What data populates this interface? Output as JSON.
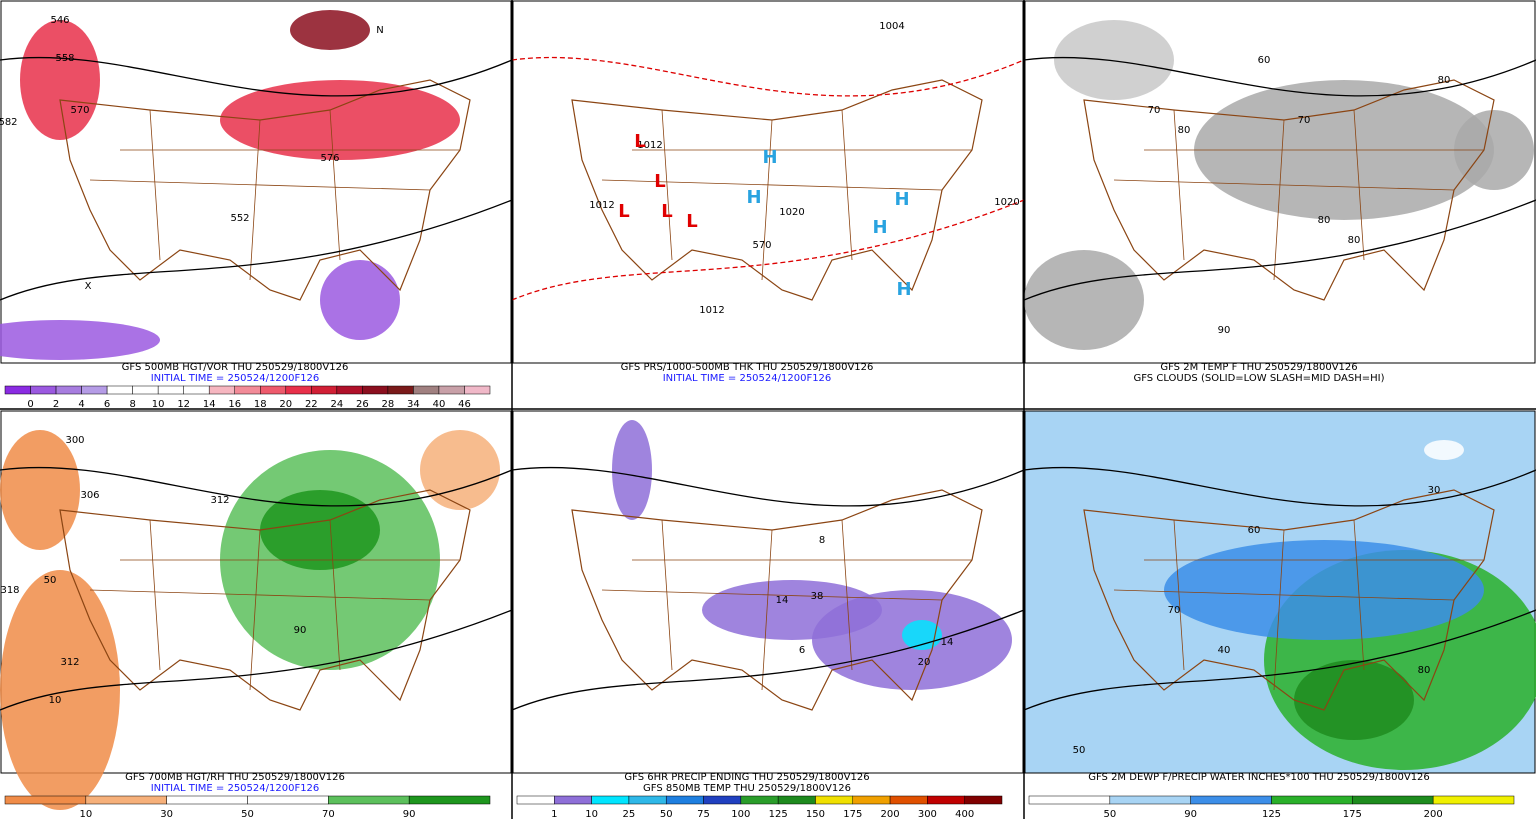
{
  "panels": [
    {
      "map_labels": [
        "546",
        "558",
        "570",
        "582",
        "552",
        "576",
        "N",
        "X"
      ],
      "caption": [
        "GFS 500MB HGT/VOR THU 250529/1800V126",
        "INITIAL TIME = 250524/1200F126"
      ],
      "colorbar": {
        "colors": [
          "#8a2be2",
          "#9b59e0",
          "#a77ddf",
          "#b59ce6",
          "#ffffff",
          "#ffffff",
          "#ffffff",
          "#ffffff",
          "#f6b6c0",
          "#f28b98",
          "#ee5a6c",
          "#e8304a",
          "#d11f35",
          "#b0102a",
          "#8b0f1f",
          "#7a1a1a",
          "#a08080",
          "#c8a0a8",
          "#f0b8c8"
        ],
        "labels": [
          0,
          2,
          4,
          6,
          8,
          10,
          12,
          14,
          16,
          18,
          20,
          22,
          24,
          26,
          28,
          34,
          40,
          46
        ]
      }
    },
    {
      "map_labels": [
        "1004",
        "1012",
        "1012",
        "1020",
        "1020",
        "1012",
        "570",
        "L",
        "L",
        "L",
        "L",
        "L",
        "H",
        "H",
        "H",
        "H",
        "H"
      ],
      "caption": [
        "GFS PRS/1000-500MB THK THU 250529/1800V126",
        "INITIAL TIME = 250524/1200F126"
      ]
    },
    {
      "map_labels": [
        "80",
        "80",
        "70",
        "60",
        "80",
        "90",
        "80",
        "70"
      ],
      "caption": [
        "GFS 2M TEMP F THU 250529/1800V126",
        "GFS CLOUDS (SOLID=LOW SLASH=MID DASH=HI)"
      ]
    },
    {
      "map_labels": [
        "300",
        "306",
        "312",
        "318",
        "10",
        "50",
        "90",
        "312"
      ],
      "caption": [
        "GFS 700MB HGT/RH THU 250529/1800V126",
        "INITIAL TIME = 250524/1200F126"
      ],
      "colorbar": {
        "colors": [
          "#f08c48",
          "#f6b07a",
          "#ffffff",
          "#ffffff",
          "#5cc05c",
          "#1e961e"
        ],
        "labels": [
          10,
          30,
          50,
          70,
          90
        ]
      }
    },
    {
      "map_labels": [
        "38",
        "20",
        "14",
        "6",
        "8",
        "14"
      ],
      "caption": [
        "GFS 6HR PRECIP ENDING THU 250529/1800V126",
        "GFS 850MB TEMP THU 250529/1800V126"
      ],
      "colorbar": {
        "colors": [
          "#ffffff",
          "#8e6fd8",
          "#00e5ff",
          "#2fb8e8",
          "#1e7fe0",
          "#2040c0",
          "#2a9d2a",
          "#1e8a1e",
          "#f0e000",
          "#f0a000",
          "#e05000",
          "#c00000",
          "#800000"
        ],
        "labels": [
          1,
          10,
          25,
          50,
          75,
          100,
          125,
          150,
          175,
          200,
          300,
          400
        ]
      }
    },
    {
      "map_labels": [
        "50",
        "40",
        "60",
        "70",
        "80",
        "30"
      ],
      "caption": [
        "GFS 2M DEWP F/PRECIP WATER INCHES*100 THU 250529/1800V126"
      ],
      "colorbar": {
        "colors": [
          "#ffffff",
          "#a8d4f4",
          "#3c8ee8",
          "#2ab02a",
          "#1e8c1e",
          "#f0f000"
        ],
        "labels": [
          50,
          90,
          125,
          175,
          200
        ]
      }
    }
  ]
}
